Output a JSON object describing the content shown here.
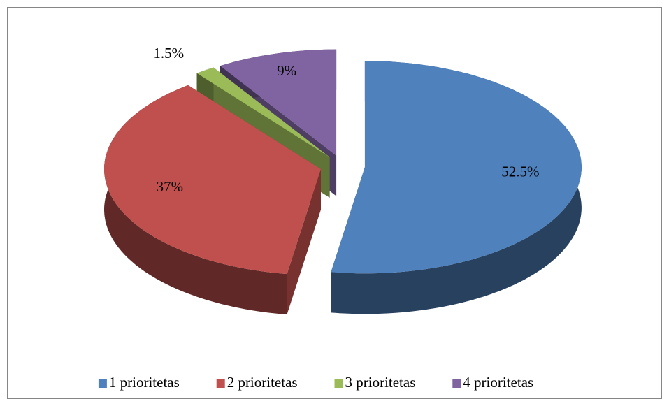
{
  "chart_data": {
    "type": "pie3d",
    "categories": [
      "1 prioritetas",
      "2 prioritetas",
      "3 prioritetas",
      "4 prioritetas"
    ],
    "values": [
      52.5,
      37,
      1.5,
      9
    ],
    "value_labels": [
      "52.5%",
      "37%",
      "1.5%",
      "9%"
    ],
    "colors": [
      "#4f81bd",
      "#c0504d",
      "#9bbb59",
      "#8064a2"
    ],
    "legend": "bottom"
  }
}
